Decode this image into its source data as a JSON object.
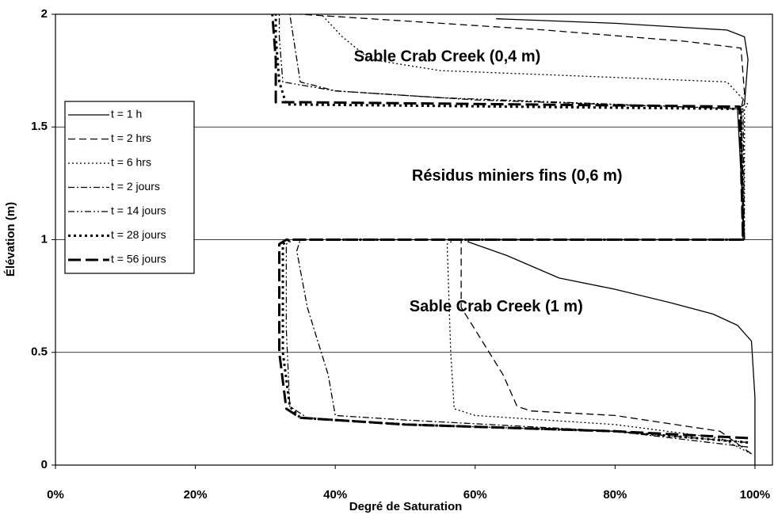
{
  "chart_data": {
    "type": "line",
    "xlabel": "Degré de Saturation",
    "ylabel": "Élévation (m)",
    "xlim": [
      0,
      102.5
    ],
    "ylim": [
      0,
      2
    ],
    "xticks": [
      {
        "value": 0,
        "label": "0%"
      },
      {
        "value": 20,
        "label": "20%"
      },
      {
        "value": 40,
        "label": "40%"
      },
      {
        "value": 60,
        "label": "60%"
      },
      {
        "value": 80,
        "label": "80%"
      },
      {
        "value": 100,
        "label": "100%"
      }
    ],
    "yticks": [
      0,
      0.5,
      1,
      1.5,
      2
    ],
    "grid": true,
    "legend": "upper left",
    "annotations": [
      {
        "text": "Sable Crab Creek (0,4 m)",
        "x": 56,
        "y": 1.81
      },
      {
        "text": "Résidus miniers fins (0,6 m)",
        "x": 66,
        "y": 1.28
      },
      {
        "text": "Sable Crab Creek (1 m)",
        "x": 63,
        "y": 0.7
      }
    ],
    "series": [
      {
        "name": "t = 1 h",
        "color": "#000000",
        "x": [
          100,
          100,
          99.5,
          97.5,
          94,
          88,
          80,
          72,
          64.5,
          59,
          59,
          98.5,
          97.5,
          98.5,
          99,
          98.5,
          96,
          80,
          63
        ],
        "y": [
          0,
          0.3,
          0.55,
          0.62,
          0.67,
          0.72,
          0.78,
          0.83,
          0.93,
          0.99,
          1.0,
          1.0,
          1.58,
          1.6,
          1.8,
          1.9,
          1.93,
          1.96,
          1.98
        ]
      },
      {
        "name": "t = 2 hrs",
        "color": "#000000",
        "x": [
          99.5,
          95,
          80,
          68,
          66,
          64,
          60,
          58,
          58,
          98.5,
          98,
          98.5,
          98,
          90,
          70,
          50,
          35
        ],
        "y": [
          0.05,
          0.15,
          0.22,
          0.24,
          0.26,
          0.4,
          0.6,
          0.7,
          1.0,
          1.0,
          1.58,
          1.65,
          1.85,
          1.88,
          1.93,
          1.97,
          2.0
        ]
      },
      {
        "name": "t = 6 hrs",
        "color": "#000000",
        "x": [
          99.5,
          95,
          80,
          60,
          57,
          56.5,
          56,
          57,
          98.5,
          98.5,
          99,
          96,
          80,
          55,
          45,
          41,
          38
        ],
        "y": [
          0.05,
          0.12,
          0.18,
          0.22,
          0.25,
          0.5,
          0.98,
          1.0,
          1.0,
          1.58,
          1.6,
          1.7,
          1.72,
          1.75,
          1.8,
          1.9,
          2.0
        ]
      },
      {
        "name": "t = 2 jours",
        "color": "#000000",
        "x": [
          99,
          80,
          50,
          40,
          39,
          36,
          34.5,
          35,
          98.5,
          98.3,
          60,
          40,
          35,
          34.5,
          34,
          33.5
        ],
        "y": [
          0.08,
          0.15,
          0.2,
          0.22,
          0.4,
          0.7,
          0.95,
          1.0,
          1.0,
          1.58,
          1.62,
          1.66,
          1.7,
          1.8,
          1.9,
          2.0
        ]
      },
      {
        "name": "t = 14 jours",
        "color": "#000000",
        "x": [
          99,
          80,
          50,
          36,
          33.5,
          33,
          33,
          34,
          98.3,
          98,
          55,
          40,
          32.5,
          32,
          32
        ],
        "y": [
          0.1,
          0.15,
          0.18,
          0.21,
          0.26,
          0.6,
          0.98,
          1.0,
          1.0,
          1.58,
          1.63,
          1.66,
          1.7,
          1.9,
          2.0
        ]
      },
      {
        "name": "t = 28 jours",
        "color": "#000000",
        "x": [
          99,
          80,
          50,
          35,
          33.5,
          32.5,
          32.5,
          33.5,
          98.3,
          98,
          33,
          32,
          31.5,
          31.5
        ],
        "y": [
          0.1,
          0.15,
          0.18,
          0.21,
          0.26,
          0.5,
          0.98,
          1.0,
          1.0,
          1.58,
          1.6,
          1.7,
          1.9,
          2.0
        ]
      },
      {
        "name": "t = 56 jours",
        "color": "#000000",
        "x": [
          99,
          80,
          50,
          35,
          33,
          32,
          32,
          33,
          98.3,
          97.8,
          35,
          31.5,
          31.5,
          31
        ],
        "y": [
          0.12,
          0.15,
          0.18,
          0.21,
          0.25,
          0.5,
          0.98,
          1.0,
          1.0,
          1.59,
          1.61,
          1.61,
          1.8,
          2.0
        ]
      }
    ]
  }
}
